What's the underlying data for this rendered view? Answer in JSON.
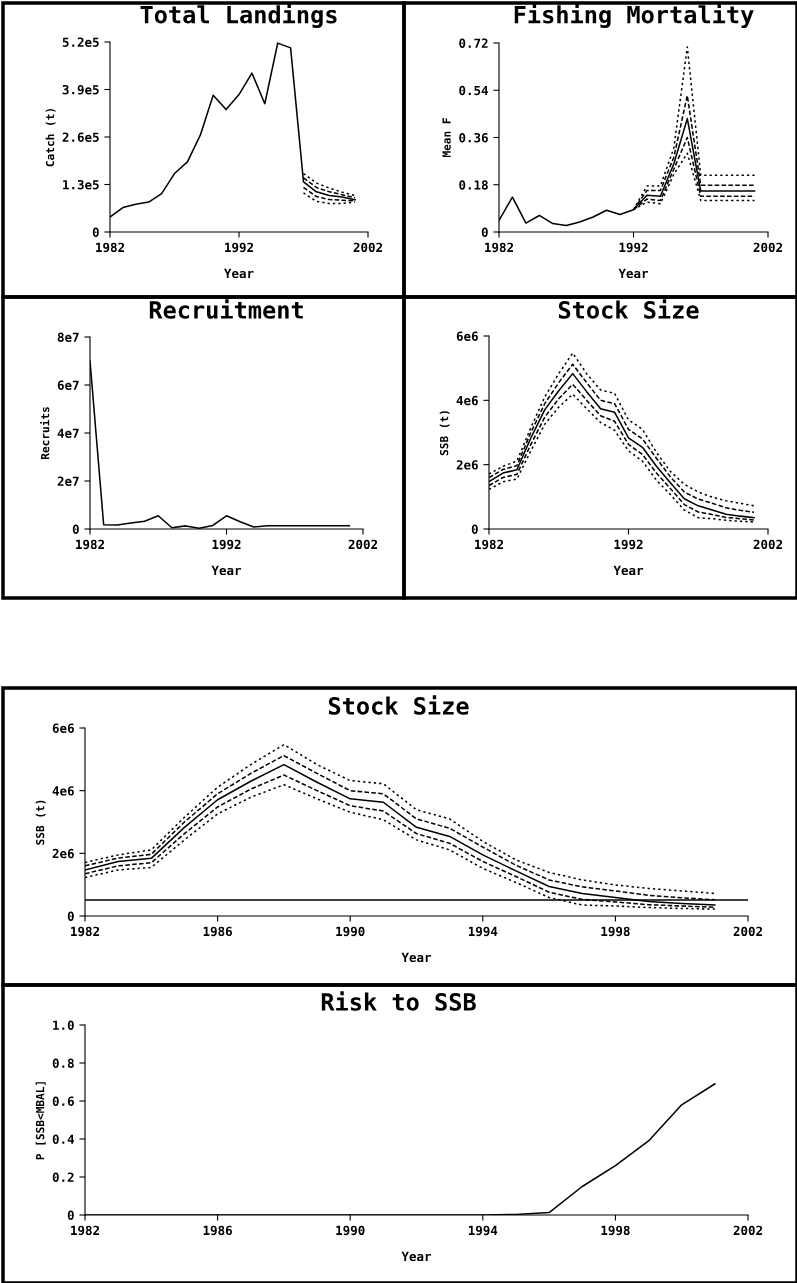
{
  "chart_data": [
    {
      "type": "line",
      "title": "Total Landings",
      "xlabel": "Year",
      "ylabel": "Catch (t)",
      "xlim": [
        1982,
        2002
      ],
      "xticks": [
        1982,
        1992,
        2002
      ],
      "ylim": [
        0,
        520000
      ],
      "yticks": [
        0,
        {
          "value": 130000,
          "label": "1.3e5"
        },
        {
          "value": 260000,
          "label": "2.6e5"
        },
        {
          "value": 390000,
          "label": "3.9e5"
        },
        {
          "value": 520000,
          "label": "5.2e5"
        }
      ],
      "grid": false,
      "x": [
        1982,
        1983,
        1984,
        1985,
        1986,
        1987,
        1988,
        1989,
        1990,
        1991,
        1992,
        1993,
        1994,
        1995,
        1996,
        1997,
        1998,
        1999,
        2000,
        2001
      ],
      "series": [
        {
          "color": "#000000",
          "line_style": "solid",
          "values": [
            41000,
            67000,
            76000,
            82000,
            105000,
            160000,
            192000,
            265000,
            374000,
            335000,
            376000,
            435000,
            351000,
            517000,
            504000,
            137000,
            110000,
            100000,
            96000,
            88000
          ]
        },
        {
          "color": "#000000",
          "line_style": "dotted",
          "x": [
            1997,
            1998,
            1999,
            2000,
            2001
          ],
          "values": [
            160000,
            134000,
            120000,
            109000,
            100000
          ]
        },
        {
          "color": "#000000",
          "line_style": "dashed",
          "x": [
            1997,
            1998,
            1999,
            2000,
            2001
          ],
          "values": [
            148000,
            122000,
            110000,
            102000,
            94000
          ]
        },
        {
          "color": "#000000",
          "line_style": "dashed",
          "x": [
            1997,
            1998,
            1999,
            2000,
            2001
          ],
          "values": [
            122000,
            97000,
            89000,
            87000,
            85000
          ]
        },
        {
          "color": "#000000",
          "line_style": "dotted",
          "x": [
            1997,
            1998,
            1999,
            2000,
            2001
          ],
          "values": [
            107000,
            84000,
            78000,
            78000,
            82000
          ]
        }
      ]
    },
    {
      "type": "line",
      "title": "Fishing Mortality",
      "xlabel": "Year",
      "ylabel": "Mean F",
      "xlim": [
        1982,
        2002
      ],
      "xticks": [
        1982,
        1992,
        2002
      ],
      "ylim": [
        0,
        0.72
      ],
      "yticks": [
        0,
        0.18,
        0.36,
        0.54,
        0.72
      ],
      "grid": false,
      "x": [
        1982,
        1983,
        1984,
        1985,
        1986,
        1987,
        1988,
        1989,
        1990,
        1991,
        1992,
        1993,
        1994,
        1995,
        1996,
        1997,
        1998,
        1999,
        2000,
        2001
      ],
      "series": [
        {
          "color": "#000000",
          "line_style": "solid",
          "values": [
            0.044,
            0.133,
            0.034,
            0.063,
            0.032,
            0.025,
            0.038,
            0.057,
            0.083,
            0.067,
            0.085,
            0.14,
            0.136,
            0.26,
            0.432,
            0.156,
            0.156,
            0.156,
            0.156,
            0.156
          ]
        },
        {
          "color": "#000000",
          "line_style": "dotted",
          "x": [
            1992,
            1993,
            1994,
            1995,
            1996,
            1997,
            1998,
            1999,
            2000,
            2001
          ],
          "values": [
            0.085,
            0.175,
            0.175,
            0.32,
            0.705,
            0.216,
            0.216,
            0.216,
            0.216,
            0.216
          ]
        },
        {
          "color": "#000000",
          "line_style": "dashed",
          "x": [
            1992,
            1993,
            1994,
            1995,
            1996,
            1997,
            1998,
            1999,
            2000,
            2001
          ],
          "values": [
            0.085,
            0.158,
            0.158,
            0.285,
            0.52,
            0.178,
            0.178,
            0.178,
            0.178,
            0.178
          ]
        },
        {
          "color": "#000000",
          "line_style": "dashed",
          "x": [
            1992,
            1993,
            1994,
            1995,
            1996,
            1997,
            1998,
            1999,
            2000,
            2001
          ],
          "values": [
            0.085,
            0.125,
            0.12,
            0.24,
            0.36,
            0.136,
            0.136,
            0.136,
            0.136,
            0.136
          ]
        },
        {
          "color": "#000000",
          "line_style": "dotted",
          "x": [
            1992,
            1993,
            1994,
            1995,
            1996,
            1997,
            1998,
            1999,
            2000,
            2001
          ],
          "values": [
            0.085,
            0.114,
            0.108,
            0.22,
            0.3,
            0.12,
            0.12,
            0.12,
            0.12,
            0.12
          ]
        }
      ]
    },
    {
      "type": "line",
      "title": "Recruitment",
      "xlabel": "Year",
      "ylabel": "Recruits",
      "xlim": [
        1982,
        2002
      ],
      "xticks": [
        1982,
        1992,
        2002
      ],
      "ylim": [
        0,
        80000000
      ],
      "yticks": [
        {
          "value": 0,
          "label": "0"
        },
        {
          "value": 20000000,
          "label": "2e7"
        },
        {
          "value": 40000000,
          "label": "4e7"
        },
        {
          "value": 60000000,
          "label": "6e7"
        },
        {
          "value": 80000000,
          "label": "8e7"
        }
      ],
      "grid": false,
      "x": [
        1982,
        1983,
        1984,
        1985,
        1986,
        1987,
        1988,
        1989,
        1990,
        1991,
        1992,
        1993,
        1994,
        1995,
        1996,
        1997,
        1998,
        1999,
        2000,
        2001
      ],
      "series": [
        {
          "color": "#000000",
          "line_style": "solid",
          "values": [
            70000000,
            1800000,
            1700000,
            2500000,
            3200000,
            5500000,
            500000,
            1300000,
            300000,
            1500000,
            5500000,
            3000000,
            800000,
            1400000,
            1400000,
            1400000,
            1400000,
            1400000,
            1400000,
            1400000
          ]
        }
      ]
    },
    {
      "type": "line",
      "title": "Stock Size",
      "xlabel": "Year",
      "ylabel": "SSB (t)",
      "xlim": [
        1982,
        2002
      ],
      "xticks": [
        1982,
        1992,
        2002
      ],
      "ylim": [
        0,
        6000000
      ],
      "yticks": [
        {
          "value": 0,
          "label": "0"
        },
        {
          "value": 2000000,
          "label": "2e6"
        },
        {
          "value": 4000000,
          "label": "4e6"
        },
        {
          "value": 6000000,
          "label": "6e6"
        }
      ],
      "grid": false,
      "x": [
        1982,
        1983,
        1984,
        1985,
        1986,
        1987,
        1988,
        1989,
        1990,
        1991,
        1992,
        1993,
        1994,
        1995,
        1996,
        1997,
        1998,
        1999,
        2000,
        2001
      ],
      "series": [
        {
          "color": "#000000",
          "line_style": "dotted",
          "values": [
            1710000,
            1950000,
            2110000,
            3150000,
            4110000,
            4830000,
            5470000,
            4830000,
            4320000,
            4220000,
            3390000,
            3100000,
            2380000,
            1790000,
            1390000,
            1150000,
            990000,
            880000,
            800000,
            720000
          ]
        },
        {
          "color": "#000000",
          "line_style": "dashed",
          "values": [
            1600000,
            1850000,
            1970000,
            3000000,
            3900000,
            4550000,
            5120000,
            4550000,
            4000000,
            3900000,
            3100000,
            2800000,
            2200000,
            1620000,
            1150000,
            930000,
            800000,
            660000,
            580000,
            520000
          ]
        },
        {
          "color": "#000000",
          "line_style": "solid",
          "values": [
            1470000,
            1740000,
            1840000,
            2830000,
            3710000,
            4300000,
            4830000,
            4270000,
            3740000,
            3630000,
            2830000,
            2540000,
            1950000,
            1440000,
            940000,
            720000,
            590000,
            460000,
            400000,
            350000
          ]
        },
        {
          "color": "#000000",
          "line_style": "dashed",
          "values": [
            1350000,
            1600000,
            1700000,
            2630000,
            3480000,
            4050000,
            4500000,
            4000000,
            3520000,
            3350000,
            2630000,
            2320000,
            1740000,
            1260000,
            760000,
            530000,
            450000,
            360000,
            320000,
            280000
          ]
        },
        {
          "color": "#000000",
          "line_style": "dotted",
          "values": [
            1230000,
            1470000,
            1550000,
            2430000,
            3260000,
            3790000,
            4190000,
            3740000,
            3310000,
            3070000,
            2430000,
            2110000,
            1520000,
            1070000,
            590000,
            350000,
            320000,
            270000,
            240000,
            220000
          ]
        }
      ]
    },
    {
      "type": "line",
      "title": "Stock Size",
      "xlabel": "Year",
      "ylabel": "SSB (t)",
      "xlim": [
        1982,
        2002
      ],
      "xticks": [
        1982,
        1986,
        1990,
        1994,
        1998,
        2002
      ],
      "ylim": [
        0,
        6000000
      ],
      "yticks": [
        {
          "value": 0,
          "label": "0"
        },
        {
          "value": 2000000,
          "label": "2e6"
        },
        {
          "value": 4000000,
          "label": "4e6"
        },
        {
          "value": 6000000,
          "label": "6e6"
        }
      ],
      "grid": false,
      "ref_lines": [
        {
          "axis": "y",
          "value": 510000,
          "color": "#000000",
          "line_style": "solid"
        }
      ],
      "x": [
        1982,
        1983,
        1984,
        1985,
        1986,
        1987,
        1988,
        1989,
        1990,
        1991,
        1992,
        1993,
        1994,
        1995,
        1996,
        1997,
        1998,
        1999,
        2000,
        2001
      ],
      "series": [
        {
          "color": "#000000",
          "line_style": "dotted",
          "values": [
            1710000,
            1950000,
            2110000,
            3150000,
            4110000,
            4830000,
            5470000,
            4830000,
            4320000,
            4220000,
            3390000,
            3100000,
            2380000,
            1790000,
            1390000,
            1150000,
            990000,
            880000,
            800000,
            720000
          ]
        },
        {
          "color": "#000000",
          "line_style": "dashed",
          "values": [
            1600000,
            1850000,
            1970000,
            3000000,
            3900000,
            4550000,
            5120000,
            4550000,
            4000000,
            3900000,
            3100000,
            2800000,
            2200000,
            1620000,
            1150000,
            930000,
            800000,
            660000,
            580000,
            520000
          ]
        },
        {
          "color": "#000000",
          "line_style": "solid",
          "values": [
            1470000,
            1740000,
            1840000,
            2830000,
            3710000,
            4300000,
            4830000,
            4270000,
            3740000,
            3630000,
            2830000,
            2540000,
            1950000,
            1440000,
            940000,
            720000,
            590000,
            460000,
            400000,
            350000
          ]
        },
        {
          "color": "#000000",
          "line_style": "dashed",
          "values": [
            1350000,
            1600000,
            1700000,
            2630000,
            3480000,
            4050000,
            4500000,
            4000000,
            3520000,
            3350000,
            2630000,
            2320000,
            1740000,
            1260000,
            760000,
            530000,
            450000,
            360000,
            320000,
            280000
          ]
        },
        {
          "color": "#000000",
          "line_style": "dotted",
          "values": [
            1230000,
            1470000,
            1550000,
            2430000,
            3260000,
            3790000,
            4190000,
            3740000,
            3310000,
            3070000,
            2430000,
            2110000,
            1520000,
            1070000,
            590000,
            350000,
            320000,
            270000,
            240000,
            220000
          ]
        }
      ]
    },
    {
      "type": "line",
      "title": "Risk to SSB",
      "xlabel": "Year",
      "ylabel": "P [SSB<MBAL]",
      "xlim": [
        1982,
        2002
      ],
      "xticks": [
        1982,
        1986,
        1990,
        1994,
        1998,
        2002
      ],
      "ylim": [
        0,
        1.0
      ],
      "yticks": [
        0,
        0.2,
        0.4,
        0.6,
        0.8,
        {
          "value": 1.0,
          "label": "1.0"
        }
      ],
      "grid": false,
      "x": [
        1982,
        1983,
        1984,
        1985,
        1986,
        1987,
        1988,
        1989,
        1990,
        1991,
        1992,
        1993,
        1994,
        1995,
        1996,
        1997,
        1998,
        1999,
        2000,
        2001
      ],
      "series": [
        {
          "color": "#000000",
          "line_style": "solid",
          "values": [
            0,
            0,
            0,
            0,
            0,
            0,
            0,
            0,
            0,
            0,
            0,
            0,
            0,
            0.003,
            0.013,
            0.15,
            0.26,
            0.39,
            0.58,
            0.69
          ]
        }
      ]
    }
  ]
}
